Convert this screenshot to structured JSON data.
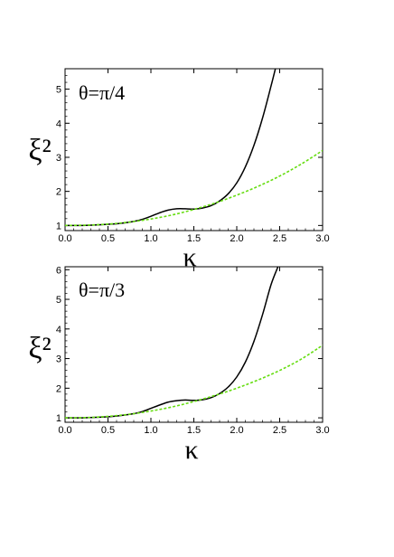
{
  "chart_data": [
    {
      "type": "line",
      "title": "θ=π/4",
      "xlabel": "κ",
      "ylabel": "ξ²",
      "xlim": [
        0.0,
        3.0
      ],
      "ylim": [
        0.85,
        5.6
      ],
      "x_ticks": [
        "0.0",
        "0.5",
        "1.0",
        "1.5",
        "2.0",
        "2.5",
        "3.0"
      ],
      "y_ticks": [
        "1",
        "2",
        "3",
        "4",
        "5"
      ],
      "grid": false,
      "series": [
        {
          "style": "solid",
          "color": "#000000",
          "x": [
            0.0,
            0.2,
            0.4,
            0.6,
            0.8,
            0.9,
            1.0,
            1.1,
            1.2,
            1.3,
            1.4,
            1.5,
            1.6,
            1.7,
            1.8,
            1.9,
            2.0,
            2.1,
            2.2,
            2.3,
            2.4,
            2.45
          ],
          "y": [
            1.0,
            1.0,
            1.02,
            1.05,
            1.12,
            1.18,
            1.27,
            1.37,
            1.45,
            1.49,
            1.49,
            1.48,
            1.51,
            1.58,
            1.72,
            1.93,
            2.25,
            2.72,
            3.35,
            4.15,
            5.1,
            5.6
          ]
        },
        {
          "style": "dashed",
          "color": "#66dd11",
          "x": [
            0.0,
            0.25,
            0.5,
            0.75,
            1.0,
            1.25,
            1.5,
            1.75,
            2.0,
            2.25,
            2.5,
            2.75,
            3.0
          ],
          "y": [
            1.0,
            1.01,
            1.04,
            1.1,
            1.19,
            1.31,
            1.47,
            1.66,
            1.89,
            2.15,
            2.45,
            2.8,
            3.2
          ]
        }
      ]
    },
    {
      "type": "line",
      "title": "θ=π/3",
      "xlabel": "κ",
      "ylabel": "ξ²",
      "xlim": [
        0.0,
        3.0
      ],
      "ylim": [
        0.85,
        6.1
      ],
      "x_ticks": [
        "0.0",
        "0.5",
        "1.0",
        "1.5",
        "2.0",
        "2.5",
        "3.0"
      ],
      "y_ticks": [
        "1",
        "2",
        "3",
        "4",
        "5",
        "6"
      ],
      "grid": false,
      "series": [
        {
          "style": "solid",
          "color": "#000000",
          "x": [
            0.0,
            0.2,
            0.4,
            0.6,
            0.8,
            0.9,
            1.0,
            1.1,
            1.2,
            1.3,
            1.4,
            1.5,
            1.6,
            1.7,
            1.8,
            1.9,
            2.0,
            2.1,
            2.2,
            2.3,
            2.4,
            2.48
          ],
          "y": [
            1.0,
            1.0,
            1.02,
            1.06,
            1.14,
            1.21,
            1.32,
            1.43,
            1.53,
            1.58,
            1.6,
            1.59,
            1.61,
            1.68,
            1.82,
            2.04,
            2.38,
            2.88,
            3.58,
            4.48,
            5.5,
            6.1
          ]
        },
        {
          "style": "dashed",
          "color": "#66dd11",
          "x": [
            0.0,
            0.25,
            0.5,
            0.75,
            1.0,
            1.25,
            1.5,
            1.75,
            2.0,
            2.25,
            2.5,
            2.75,
            3.0
          ],
          "y": [
            1.0,
            1.01,
            1.05,
            1.12,
            1.23,
            1.37,
            1.55,
            1.76,
            2.0,
            2.28,
            2.6,
            2.98,
            3.45
          ]
        }
      ]
    }
  ]
}
